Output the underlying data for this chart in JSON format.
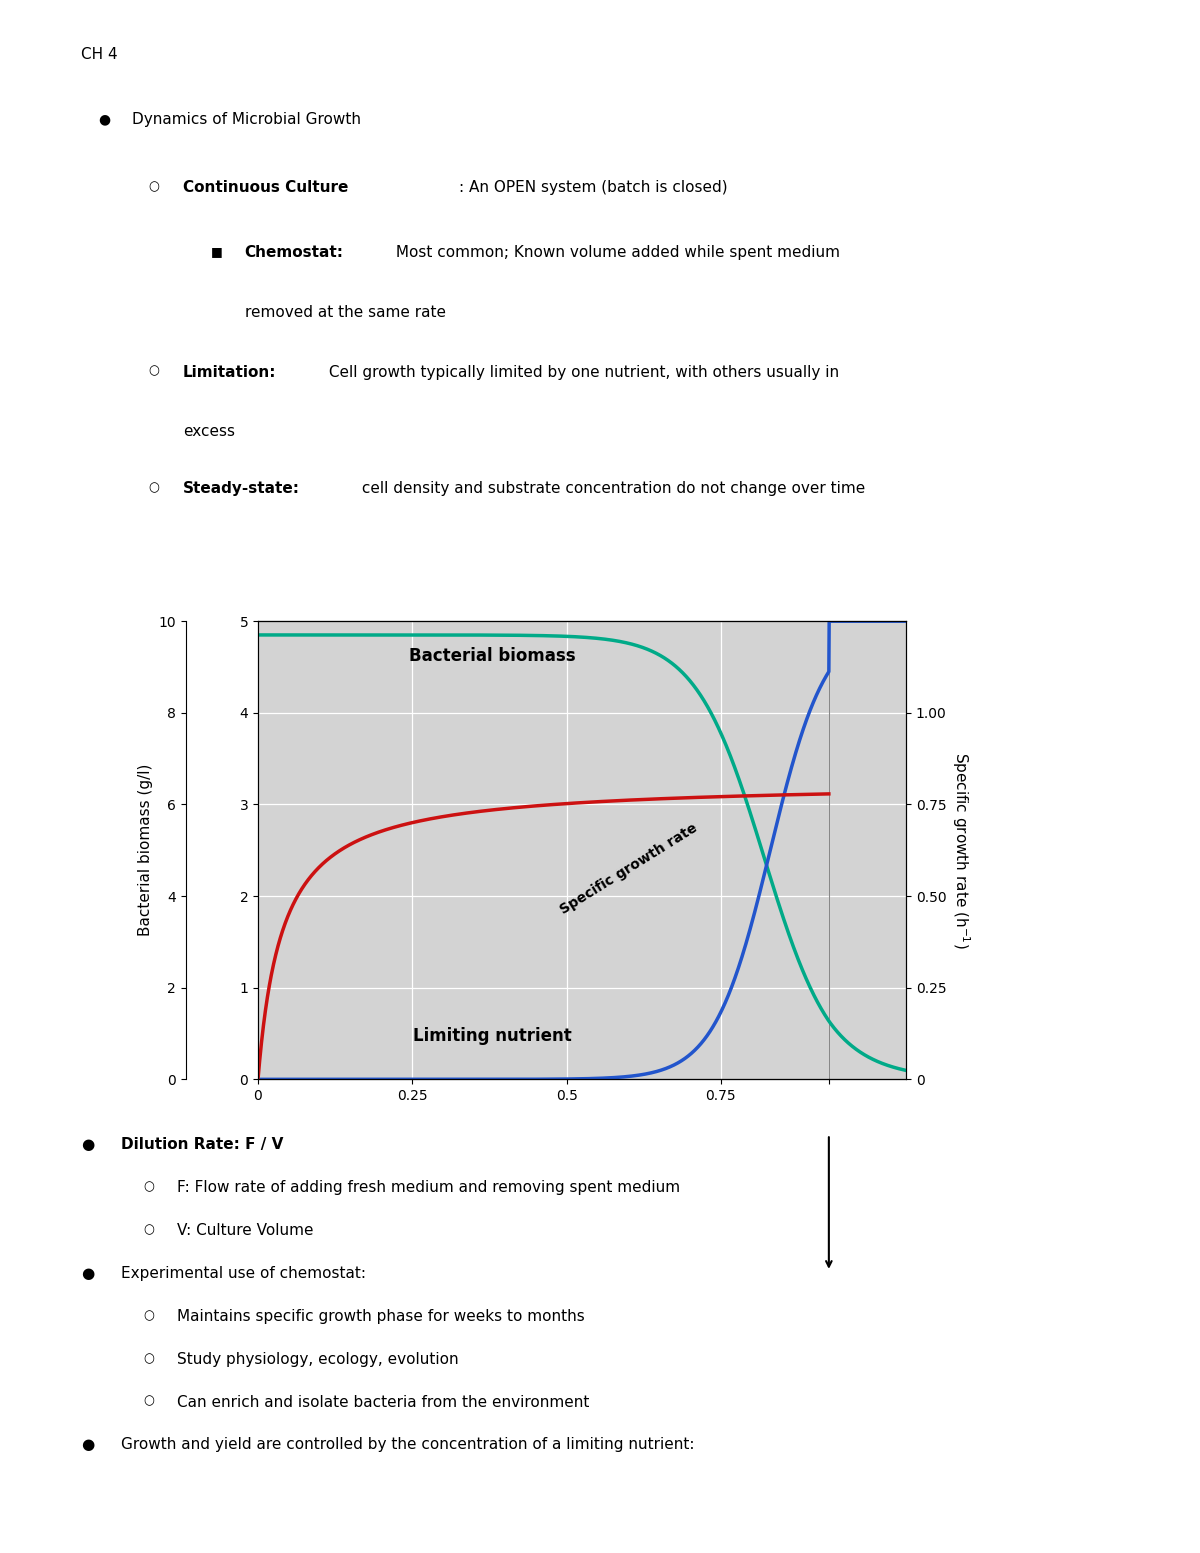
{
  "title_top": "CH 4",
  "plot_bg": "#d3d3d3",
  "line_biomass_color": "#00aa88",
  "line_nutrient_color": "#2255cc",
  "line_growth_color": "#cc1111",
  "label_biomass": "Bacterial biomass",
  "label_nutrient": "Limiting nutrient",
  "label_growth": "Specific growth rate",
  "washout": 0.925,
  "inner_ylim": [
    0,
    5
  ],
  "outer_ylim": [
    0,
    10
  ],
  "right_ylim": [
    0,
    1.25
  ],
  "xlim": [
    0,
    1.05
  ],
  "font_size_text": 11,
  "font_size_ticks": 10
}
